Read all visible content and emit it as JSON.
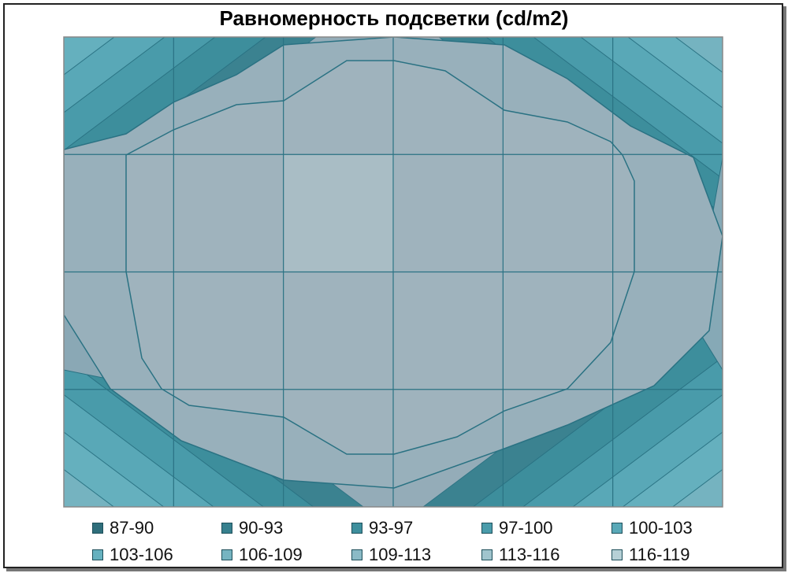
{
  "chart_data": {
    "type": "heatmap",
    "title": "Равномерность подсветки (cd/m2)",
    "legend": {
      "placement": "bottom",
      "entries": [
        "87-90",
        "90-93",
        "93-97",
        "97-100",
        "100-103",
        "103-106",
        "106-109",
        "109-113",
        "113-116",
        "116-119"
      ],
      "colors": [
        "#2f6e7b",
        "#37808e",
        "#3e8f9d",
        "#4a9cab",
        "#5aa9b8",
        "#66b1bf",
        "#76b4c1",
        "#8bbac6",
        "#a0c4cd",
        "#b6d0d6"
      ]
    },
    "grid": true,
    "columns": 6,
    "rows": 4,
    "values": [
      [
        88,
        101,
        106,
        107,
        104,
        90
      ],
      [
        102,
        108,
        113,
        111,
        106,
        97
      ],
      [
        103,
        109,
        112,
        111,
        108,
        102
      ],
      [
        93,
        104,
        108,
        109,
        105,
        95
      ]
    ],
    "colors": {
      "center": "#a9bdc5",
      "inner": "#9fb3bd",
      "mid": "#94acb8",
      "edge": "#3b8a98",
      "outline": "#2a7283",
      "border": "#888888"
    }
  }
}
